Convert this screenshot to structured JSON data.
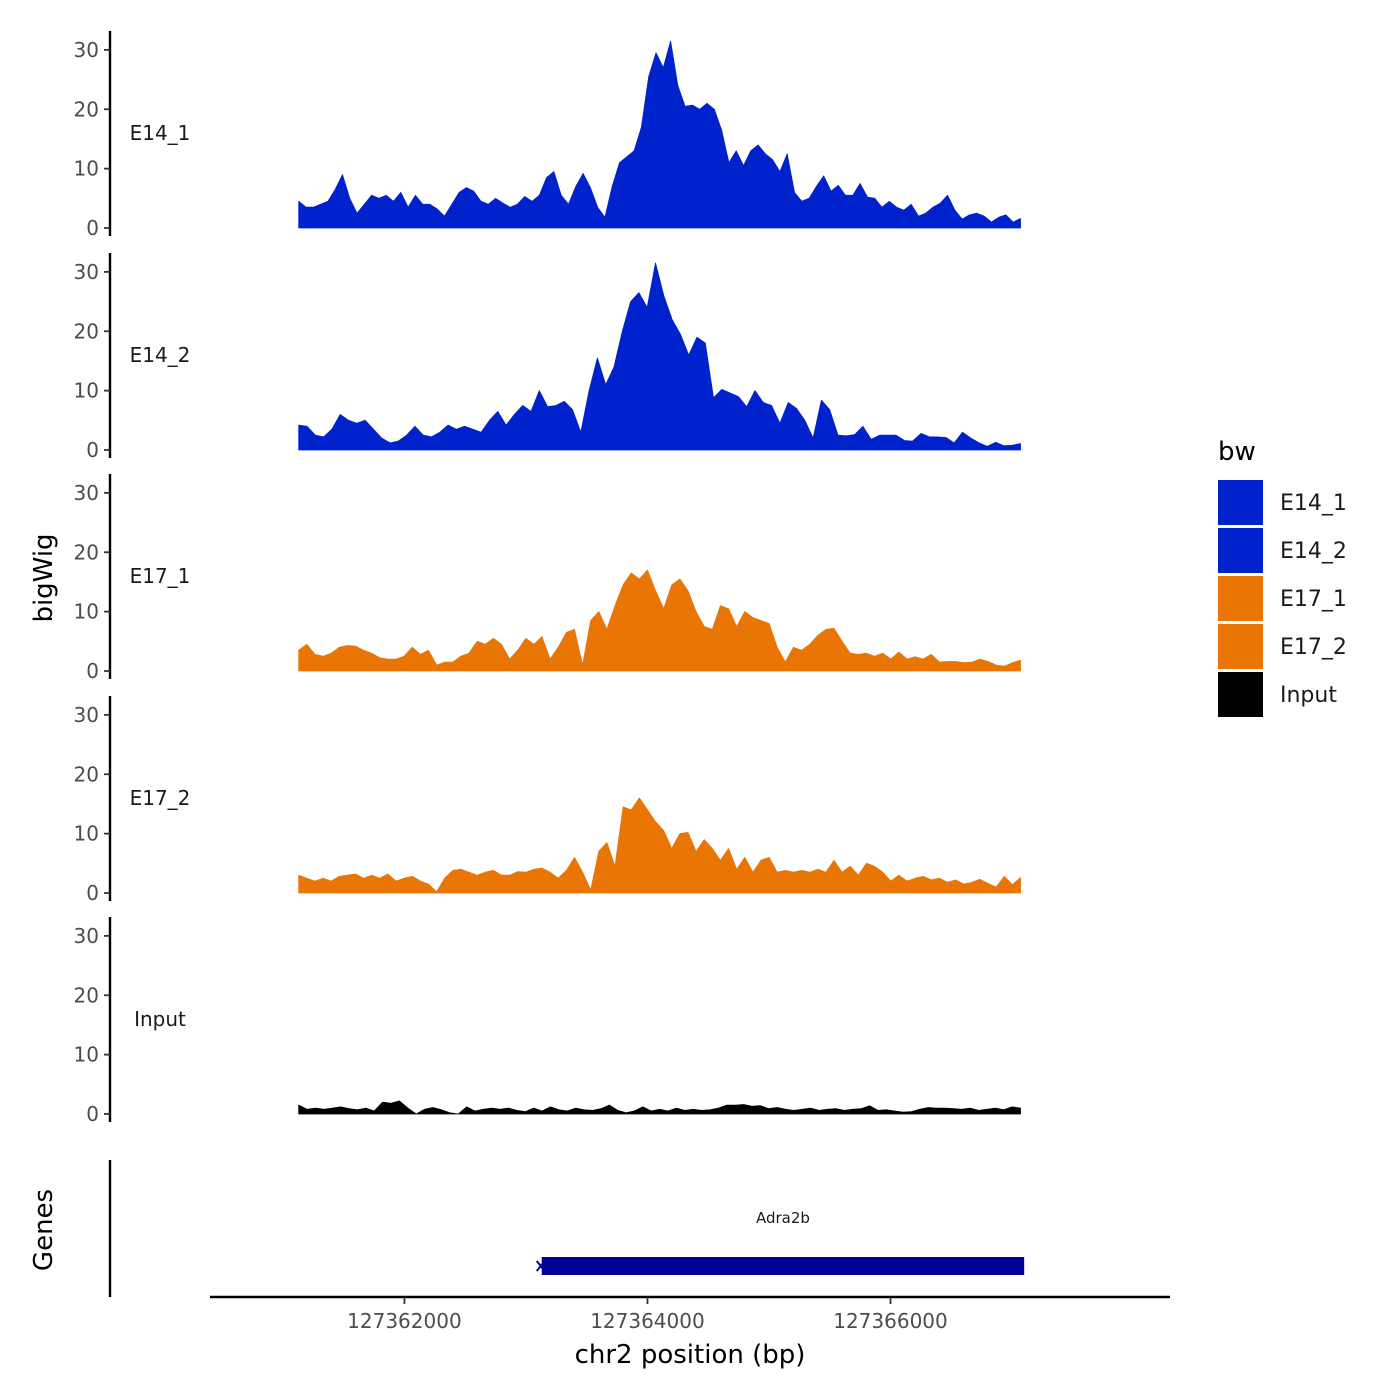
{
  "chart_data": {
    "type": "area",
    "chromosome": "chr2",
    "xlabel": "chr2 position (bp)",
    "ylabel": "bigWig",
    "gene_track_label": "Genes",
    "xlim": [
      127360400,
      127368300
    ],
    "x_ticks": [
      127362000,
      127364000,
      127366000
    ],
    "x_tick_labels": [
      "127362000",
      "127364000",
      "127366000"
    ],
    "ylim": [
      0,
      32
    ],
    "y_ticks": [
      0,
      10,
      20,
      30
    ],
    "y_tick_labels": [
      "0",
      "10",
      "20",
      "30"
    ],
    "x_start": 127361130,
    "x_end": 127367070,
    "legend": {
      "title": "bw",
      "entries": [
        {
          "label": "E14_1",
          "color": "#0022cc"
        },
        {
          "label": "E14_2",
          "color": "#0022cc"
        },
        {
          "label": "E17_1",
          "color": "#e87504"
        },
        {
          "label": "E17_2",
          "color": "#e87504"
        },
        {
          "label": "Input",
          "color": "#000000"
        }
      ]
    },
    "series": [
      {
        "name": "E14_1",
        "color": "#0022cc",
        "values": [
          4.5,
          3.5,
          3.5,
          4,
          4.5,
          6.5,
          9,
          5,
          2.5,
          4,
          5.5,
          5,
          5.5,
          4.5,
          6,
          3.5,
          5.5,
          4,
          4,
          3.2,
          2,
          4,
          6,
          6.8,
          6.2,
          4.5,
          4,
          5,
          4.2,
          3.5,
          4,
          5.3,
          4.5,
          5.5,
          8.5,
          9.5,
          5.5,
          4,
          7,
          9.2,
          6.8,
          3.5,
          1.8,
          7,
          11,
          12,
          13,
          17,
          25.5,
          29.5,
          27,
          31.5,
          24,
          20.5,
          20.7,
          20,
          21,
          20,
          16.5,
          11,
          13,
          10.5,
          13,
          14,
          12.5,
          11.5,
          9.5,
          12.5,
          6,
          4.5,
          5,
          7,
          8.8,
          6.2,
          7.2,
          5.5,
          5.5,
          7.5,
          5.2,
          5,
          3.5,
          4.5,
          3.5,
          3,
          4,
          2,
          2.5,
          3.5,
          4.2,
          5.5,
          3,
          1.5,
          2.2,
          2.5,
          2,
          1,
          1.8,
          2.2,
          1,
          1.6
        ]
      },
      {
        "name": "E14_2",
        "color": "#0022cc",
        "values": [
          4.2,
          4,
          2.5,
          2.2,
          3.5,
          6,
          5,
          4.5,
          5,
          3.5,
          2,
          1.2,
          1.5,
          2.5,
          4,
          2.5,
          2.2,
          3,
          4.2,
          3.5,
          4,
          3.5,
          3,
          5,
          6.5,
          4.2,
          6,
          7.5,
          6.5,
          10,
          7.3,
          7.5,
          8.2,
          6.8,
          3,
          10,
          15.5,
          11,
          14,
          20,
          25,
          26.5,
          24,
          31.5,
          26,
          22,
          19.5,
          16,
          19,
          18,
          8.8,
          10.2,
          9.6,
          9,
          7.3,
          10,
          8,
          7.5,
          4.5,
          8,
          7,
          5,
          2,
          8.4,
          6.8,
          2.5,
          2.4,
          2.6,
          4,
          1.8,
          2.5,
          2.5,
          2.5,
          1.6,
          1.5,
          2.8,
          2.2,
          2.2,
          2.1,
          1.2,
          3,
          2,
          1.2,
          0.6,
          1.3,
          0.7,
          0.8,
          1.1
        ]
      },
      {
        "name": "E17_1",
        "color": "#e87504",
        "values": [
          3.5,
          4.5,
          2.8,
          2.5,
          3,
          4,
          4.3,
          4.2,
          3.5,
          3,
          2.2,
          2,
          2,
          2.5,
          4,
          2.8,
          3.5,
          1,
          1.5,
          1.5,
          2.5,
          3,
          5,
          4.5,
          5.5,
          4.5,
          2,
          3.5,
          5.5,
          4.5,
          5.8,
          2,
          4,
          6.5,
          7,
          1,
          8.5,
          10,
          7,
          11,
          14.5,
          16.5,
          15.5,
          17,
          13.5,
          10.5,
          14.5,
          15.5,
          13.5,
          10,
          7.5,
          7,
          11,
          10.5,
          7.5,
          10,
          9,
          8.5,
          8,
          4,
          1.5,
          4,
          3.5,
          4.5,
          6,
          7,
          7.2,
          5,
          3,
          2.8,
          3,
          2.5,
          3,
          2,
          3.2,
          2,
          2.4,
          2,
          2.8,
          1.5,
          1.6,
          1.6,
          1.4,
          1.5,
          2,
          1.6,
          1,
          0.8,
          1.4,
          1.8
        ]
      },
      {
        "name": "E17_2",
        "color": "#e87504",
        "values": [
          3,
          2.5,
          2,
          2.5,
          2,
          2.8,
          3,
          3.2,
          2.5,
          3,
          2.5,
          3.2,
          2,
          2.5,
          2.8,
          2,
          1.5,
          0.2,
          2.5,
          3.8,
          4,
          3.5,
          3,
          3.5,
          3.8,
          3,
          3,
          3.6,
          3.5,
          4,
          4.2,
          3.5,
          2.5,
          3.8,
          6,
          3.5,
          0.5,
          7,
          8.5,
          4.5,
          14.5,
          14,
          16,
          14,
          12,
          10.5,
          7.5,
          10,
          10.2,
          7,
          9,
          7.5,
          5.5,
          7.5,
          4,
          6,
          3.5,
          5.5,
          6,
          3.5,
          3.8,
          3.5,
          3.8,
          3.5,
          4,
          3.5,
          5.5,
          3.5,
          4.5,
          3,
          5,
          4.5,
          3.5,
          2,
          3,
          2,
          2.5,
          2.8,
          2.2,
          2.5,
          1.8,
          2.2,
          1.5,
          1.8,
          2.3,
          1.6,
          1,
          2.8,
          1.4,
          2.6
        ]
      },
      {
        "name": "Input",
        "color": "#000000",
        "values": [
          1.5,
          0.8,
          1,
          0.8,
          1,
          1.2,
          0.9,
          0.7,
          1,
          0.5,
          2,
          1.8,
          2.2,
          1,
          0,
          0.8,
          1.1,
          0.7,
          0.2,
          0,
          1.2,
          0.5,
          0.8,
          1,
          0.8,
          1,
          0.6,
          0.4,
          1,
          0.5,
          1.2,
          0.7,
          0.5,
          1,
          0.7,
          0.6,
          0.9,
          1.5,
          0.6,
          0.2,
          0.5,
          1.2,
          0.5,
          0.8,
          0.5,
          1,
          0.6,
          0.8,
          0.6,
          0.7,
          1,
          1.5,
          1.5,
          1.6,
          1.3,
          1.4,
          0.9,
          1.1,
          0.8,
          0.6,
          0.8,
          1,
          0.6,
          0.8,
          0.9,
          0.6,
          0.8,
          0.9,
          1.4,
          0.6,
          0.7,
          0.5,
          0.3,
          0.4,
          0.8,
          1.1,
          1,
          1,
          0.9,
          0.8,
          1,
          0.6,
          0.8,
          1,
          0.7,
          1.2,
          1
        ]
      }
    ],
    "genes": [
      {
        "name": "Adra2b",
        "start": 127363130,
        "end": 127367100,
        "color": "#000099"
      }
    ]
  }
}
